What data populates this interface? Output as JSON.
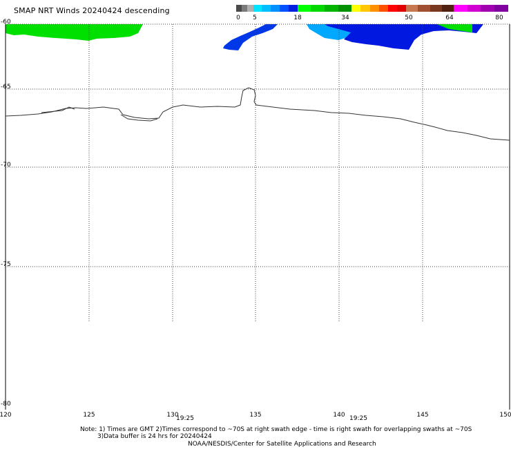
{
  "title": "SMAP NRT Winds  20240424 descending",
  "colorbar": {
    "labels": [
      "0",
      "5",
      "18",
      "34",
      "50",
      "64",
      "80"
    ],
    "segments": [
      {
        "from": 0,
        "to": 5,
        "colors": [
          "#4a4a4a",
          "#7a7a7a",
          "#b0b0b0"
        ]
      },
      {
        "from": 5,
        "to": 18,
        "colors": [
          "#00e5ff",
          "#00bfff",
          "#0090ff",
          "#0050ff",
          "#0020e0"
        ]
      },
      {
        "from": 18,
        "to": 34,
        "colors": [
          "#00ff00",
          "#00d800",
          "#00b400",
          "#009000"
        ]
      },
      {
        "from": 34,
        "to": 50,
        "colors": [
          "#ffff00",
          "#ffc800",
          "#ff9000",
          "#ff5000",
          "#ff0000",
          "#e00000"
        ]
      },
      {
        "from": 50,
        "to": 64,
        "colors": [
          "#c87850",
          "#a05030",
          "#783820",
          "#502010"
        ]
      },
      {
        "from": 64,
        "to": 80,
        "colors": [
          "#ff00ff",
          "#d000d0",
          "#a000b0",
          "#8000a0"
        ]
      }
    ]
  },
  "map": {
    "lon_range": [
      120,
      150
    ],
    "lat_range": [
      -80,
      -60
    ],
    "lon_ticks": [
      "120",
      "125",
      "130",
      "135",
      "140",
      "145",
      "150"
    ],
    "lat_ticks": [
      "-60",
      "-65",
      "-70",
      "-75",
      "-80"
    ],
    "swath_times": [
      {
        "label": "19:25",
        "lon": 130.7
      },
      {
        "label": "19:25",
        "lon": 141.2
      }
    ]
  },
  "notes": {
    "line1": "Note: 1) Times are GMT 2)Times correspond to ~70S at right swath edge - time is right swath for overlapping swaths at ~70S",
    "line2": "3)Data buffer is 24 hrs for 20240424",
    "line3": "NOAA/NESDIS/Center for Satellite Applications and Research"
  }
}
